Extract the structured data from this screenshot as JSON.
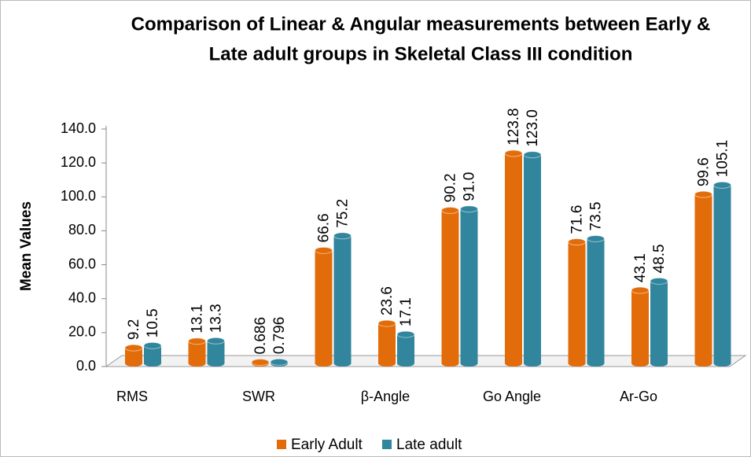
{
  "chart_data": {
    "type": "bar",
    "title": [
      "Comparison of Linear & Angular measurements between Early &",
      "Late adult groups in Skeletal Class III condition"
    ],
    "y_label": "Mean Values",
    "categories": [
      "RMS",
      null,
      "SWR",
      null,
      "β-Angle",
      null,
      "Go Angle",
      null,
      "Ar-Go",
      null
    ],
    "series": [
      {
        "name": "Early Adult",
        "color": "#e36c0a",
        "values": [
          9.2,
          13.1,
          0.686,
          66.6,
          23.6,
          90.2,
          123.8,
          71.6,
          43.1,
          99.6
        ],
        "value_labels": [
          "9.2",
          "13.1",
          "0.686",
          "66.6",
          "23.6",
          "90.2",
          "123.8",
          "71.6",
          "43.1",
          "99.6"
        ]
      },
      {
        "name": "Late adult",
        "color": "#31859c",
        "values": [
          10.5,
          13.3,
          0.796,
          75.2,
          17.1,
          91,
          123,
          73.5,
          48.5,
          105.1
        ],
        "value_labels": [
          "10.5",
          "13.3",
          "0.796",
          "75.2",
          "17.1",
          "91.0",
          "123.0",
          "73.5",
          "48.5",
          "105.1"
        ]
      }
    ],
    "ylim": [
      0,
      140
    ],
    "yticks": [
      {
        "value": 0,
        "label": "0.0"
      },
      {
        "value": 20,
        "label": "20.0"
      },
      {
        "value": 40,
        "label": "40.0"
      },
      {
        "value": 60,
        "label": "60.0"
      },
      {
        "value": 80,
        "label": "80.0"
      },
      {
        "value": 100,
        "label": "100.0"
      },
      {
        "value": 120,
        "label": "120.0"
      },
      {
        "value": 140,
        "label": "140.0"
      }
    ],
    "legend": "bottom"
  }
}
